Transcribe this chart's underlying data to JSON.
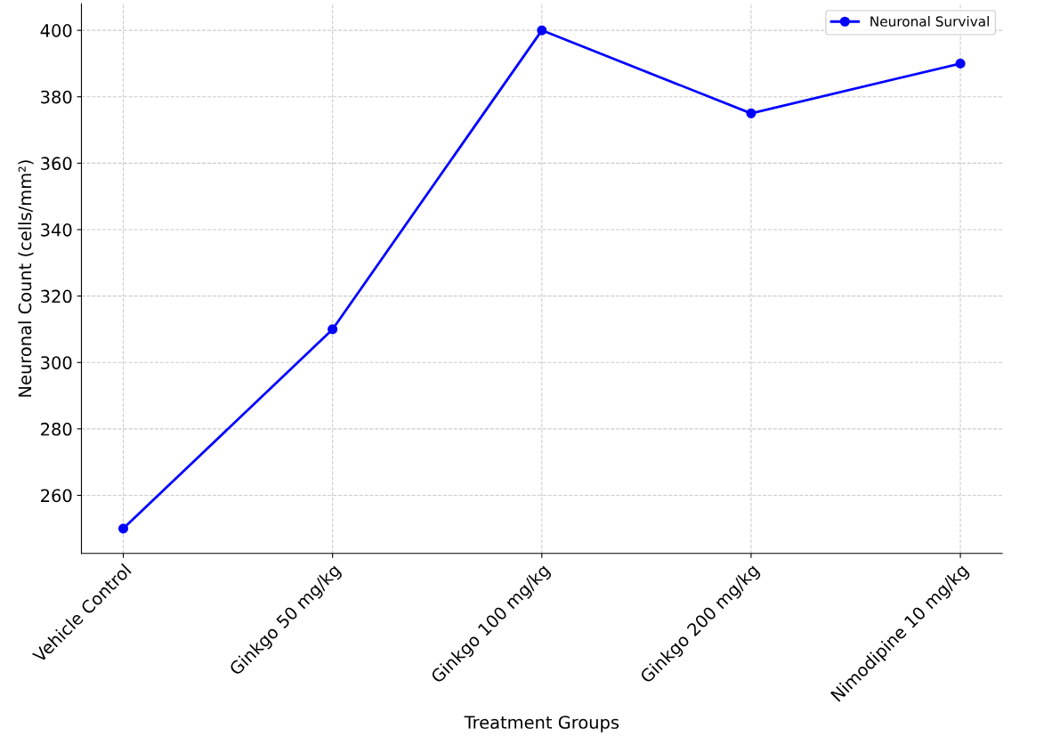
{
  "chart_data": {
    "type": "line",
    "xlabel": "Treatment Groups",
    "ylabel": "Neuronal Count (cells/mm²)",
    "categories": [
      "Vehicle Control",
      "Ginkgo 50 mg/kg",
      "Ginkgo 100 mg/kg",
      "Ginkgo 200 mg/kg",
      "Nimodipine 10 mg/kg"
    ],
    "series": [
      {
        "name": "Neuronal Survival",
        "color": "#0000ff",
        "values": [
          250,
          310,
          400,
          375,
          390
        ]
      }
    ],
    "ylim": [
      242.5,
      408
    ],
    "yticks": [
      260,
      280,
      300,
      320,
      340,
      360,
      380,
      400
    ],
    "grid": true,
    "legend": "top right",
    "marker": "circle",
    "line_style": "solid"
  }
}
